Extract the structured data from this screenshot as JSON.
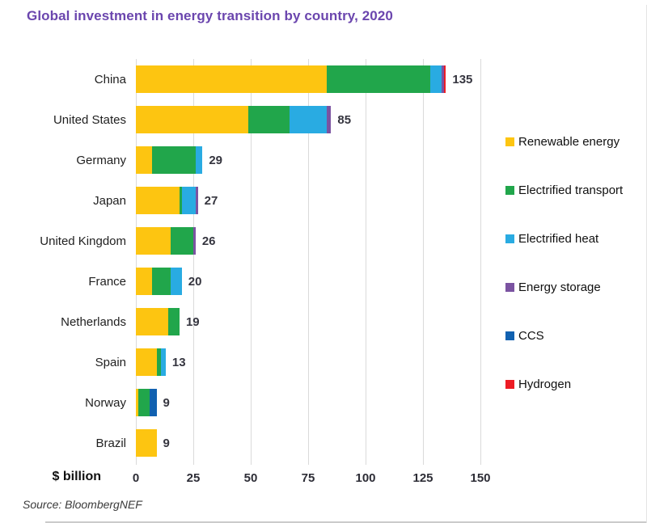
{
  "title": "Global investment in energy transition by country, 2020",
  "source": "Source: BloombergNEF",
  "axis_unit_label": "$ billion",
  "colors": {
    "title_text": "#6b46ae",
    "grid": "#dadada",
    "value_label": "#35353f",
    "country_label": "#1f1f1f",
    "source_text": "#3a3a3a"
  },
  "chart_data": {
    "type": "bar",
    "orientation": "horizontal",
    "stacked": true,
    "title": "Global investment in energy transition by country, 2020",
    "categories": [
      "China",
      "United States",
      "Germany",
      "Japan",
      "United Kingdom",
      "France",
      "Netherlands",
      "Spain",
      "Norway",
      "Brazil"
    ],
    "totals": [
      135,
      85,
      29,
      27,
      26,
      20,
      19,
      13,
      9,
      9
    ],
    "series": [
      {
        "name": "Renewable energy",
        "color": "#fdc511",
        "values": [
          83,
          49,
          7,
          19,
          15,
          7,
          14,
          9,
          1,
          9
        ]
      },
      {
        "name": "Electrified transport",
        "color": "#21a64b",
        "values": [
          45,
          18,
          19,
          1,
          10,
          8,
          5,
          2,
          5,
          0
        ]
      },
      {
        "name": "Electrified heat",
        "color": "#29abe2",
        "values": [
          5,
          16,
          3,
          6,
          0,
          5,
          0,
          2,
          0,
          0
        ]
      },
      {
        "name": "Energy storage",
        "color": "#7b53a1",
        "values": [
          1,
          2,
          0,
          1,
          1,
          0,
          0,
          0,
          0,
          0
        ]
      },
      {
        "name": "CCS",
        "color": "#1161b0",
        "values": [
          0,
          0,
          0,
          0,
          0,
          0,
          0,
          0,
          3,
          0
        ]
      },
      {
        "name": "Hydrogen",
        "color": "#ed1c24",
        "values": [
          1,
          0,
          0,
          0,
          0,
          0,
          0,
          0,
          0,
          0
        ]
      }
    ],
    "xlabel": "$ billion",
    "xlim": [
      0,
      150
    ],
    "xticks": [
      0,
      25,
      50,
      75,
      100,
      125,
      150
    ],
    "grid": true,
    "legend_position": "right",
    "value_labels": "end-of-bar"
  }
}
